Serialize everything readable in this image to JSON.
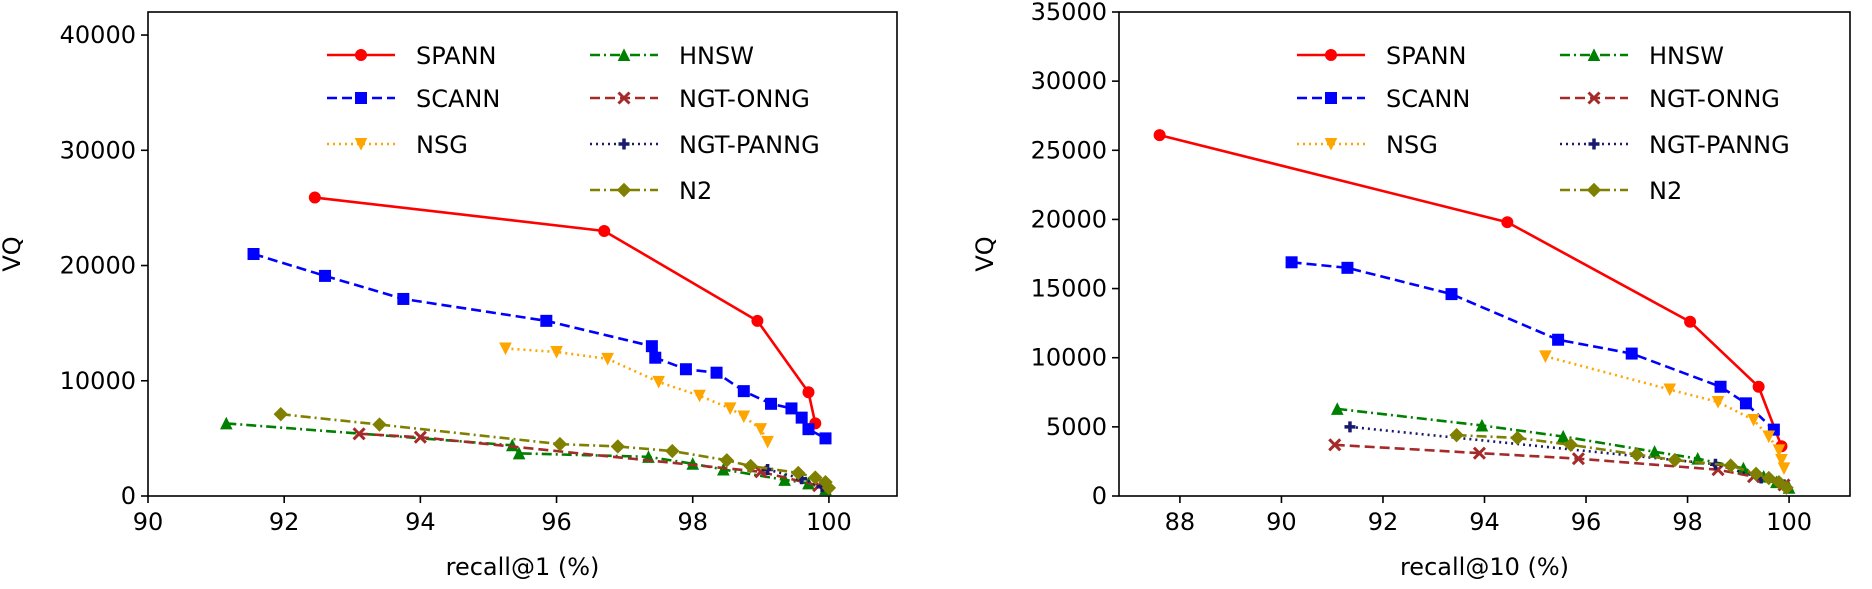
{
  "chart_data": [
    {
      "type": "line",
      "xlabel": "recall@1 (%)",
      "ylabel": "VQ",
      "xlim": [
        90,
        101
      ],
      "ylim": [
        0,
        42000
      ],
      "xticks": [
        90,
        92,
        94,
        96,
        98,
        100
      ],
      "yticks": [
        0,
        10000,
        20000,
        30000,
        40000
      ],
      "legend": "top-center, two columns",
      "grid": false,
      "series": [
        {
          "name": "SPANN",
          "color": "#ff0000",
          "marker": "circle",
          "dash": "solid",
          "x": [
            92.45,
            96.7,
            98.95,
            99.7,
            99.8
          ],
          "y": [
            25900,
            23000,
            15200,
            9000,
            6300
          ]
        },
        {
          "name": "SCANN",
          "color": "#0000ff",
          "marker": "square",
          "dash": "dashed",
          "x": [
            91.55,
            92.6,
            93.75,
            95.85,
            97.4,
            97.45,
            97.9,
            98.35,
            98.75,
            99.15,
            99.45,
            99.6,
            99.7,
            99.95
          ],
          "y": [
            21000,
            19100,
            17100,
            15200,
            13000,
            12000,
            11000,
            10700,
            9100,
            8000,
            7600,
            6800,
            5800,
            5000
          ]
        },
        {
          "name": "NSG",
          "color": "#ffa500",
          "marker": "triangle-down",
          "dash": "dotted",
          "x": [
            95.25,
            96.0,
            96.75,
            97.5,
            98.1,
            98.55,
            98.75,
            99.0,
            99.1
          ],
          "y": [
            12800,
            12500,
            11900,
            9900,
            8700,
            7600,
            6900,
            5800,
            4700
          ]
        },
        {
          "name": "HNSW",
          "color": "#008000",
          "marker": "triangle-up",
          "dash": "dashdot",
          "x": [
            91.15,
            95.35,
            95.45,
            97.35,
            98.0,
            98.45,
            99.35,
            99.7,
            99.95
          ],
          "y": [
            6300,
            4400,
            3700,
            3400,
            2800,
            2300,
            1400,
            1100,
            600
          ]
        },
        {
          "name": "NGT-ONNG",
          "color": "#a52a2a",
          "marker": "x",
          "dash": "dashed",
          "x": [
            93.1,
            94.0,
            99.0,
            99.85
          ],
          "y": [
            5400,
            5100,
            2100,
            900
          ]
        },
        {
          "name": "NGT-PANNG",
          "color": "#191970",
          "marker": "plus",
          "dash": "dotted",
          "x": [
            99.1,
            99.6,
            99.9
          ],
          "y": [
            2300,
            1500,
            800
          ]
        },
        {
          "name": "N2",
          "color": "#808000",
          "marker": "diamond",
          "dash": "dashdot",
          "x": [
            91.95,
            93.4,
            96.05,
            96.9,
            97.7,
            98.5,
            98.85,
            99.55,
            99.8,
            99.95,
            100.0
          ],
          "y": [
            7100,
            6200,
            4500,
            4300,
            3900,
            3100,
            2600,
            2000,
            1600,
            1200,
            700
          ]
        }
      ]
    },
    {
      "type": "line",
      "xlabel": "recall@10 (%)",
      "ylabel": "VQ",
      "xlim": [
        86.8,
        101.2
      ],
      "ylim": [
        0,
        35000
      ],
      "xticks": [
        88,
        90,
        92,
        94,
        96,
        98,
        100
      ],
      "yticks": [
        0,
        5000,
        10000,
        15000,
        20000,
        25000,
        30000,
        35000
      ],
      "legend": "top-center, two columns",
      "grid": false,
      "series": [
        {
          "name": "SPANN",
          "color": "#ff0000",
          "marker": "circle",
          "dash": "solid",
          "x": [
            87.6,
            94.45,
            98.05,
            99.4,
            99.85
          ],
          "y": [
            26100,
            19800,
            12600,
            7900,
            3600
          ]
        },
        {
          "name": "SCANN",
          "color": "#0000ff",
          "marker": "square",
          "dash": "dashed",
          "x": [
            90.2,
            91.3,
            93.35,
            95.45,
            96.9,
            98.65,
            99.15,
            99.7
          ],
          "y": [
            16900,
            16500,
            14600,
            11300,
            10300,
            7900,
            6700,
            4800
          ]
        },
        {
          "name": "NSG",
          "color": "#ffa500",
          "marker": "triangle-down",
          "dash": "dotted",
          "x": [
            95.2,
            97.65,
            98.6,
            99.3,
            99.6,
            99.8,
            99.85,
            99.9
          ],
          "y": [
            10100,
            7700,
            6800,
            5500,
            4300,
            3300,
            2600,
            2000
          ]
        },
        {
          "name": "HNSW",
          "color": "#008000",
          "marker": "triangle-up",
          "dash": "dashdot",
          "x": [
            91.1,
            93.95,
            95.55,
            97.35,
            98.2,
            99.1,
            99.5,
            99.75,
            100.0
          ],
          "y": [
            6300,
            5100,
            4300,
            3200,
            2700,
            2000,
            1400,
            1000,
            600
          ]
        },
        {
          "name": "NGT-ONNG",
          "color": "#a52a2a",
          "marker": "x",
          "dash": "dashed",
          "x": [
            91.05,
            93.9,
            95.85,
            98.6,
            99.3,
            99.9
          ],
          "y": [
            3700,
            3100,
            2700,
            1900,
            1400,
            800
          ]
        },
        {
          "name": "NGT-PANNG",
          "color": "#191970",
          "marker": "plus",
          "dash": "dotted",
          "x": [
            91.35,
            98.55,
            99.45,
            99.9
          ],
          "y": [
            5000,
            2300,
            1300,
            800
          ]
        },
        {
          "name": "N2",
          "color": "#808000",
          "marker": "diamond",
          "dash": "dashdot",
          "x": [
            93.45,
            94.65,
            95.7,
            97.0,
            97.75,
            98.85,
            99.35,
            99.6,
            99.8,
            99.95
          ],
          "y": [
            4400,
            4200,
            3700,
            3000,
            2600,
            2200,
            1600,
            1300,
            1000,
            600
          ]
        }
      ]
    }
  ]
}
